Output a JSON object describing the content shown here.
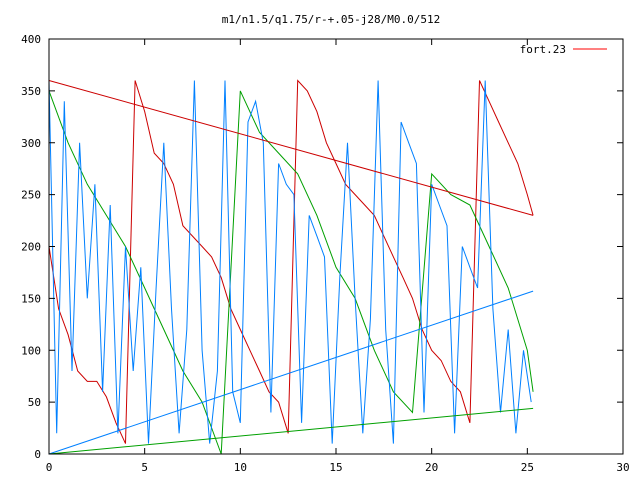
{
  "chart_data": {
    "type": "line",
    "title": "m1/n1.5/q1.75/r-+.05-j28/M0.0/512",
    "xlabel": "",
    "ylabel": "",
    "xlim": [
      0,
      30
    ],
    "ylim": [
      0,
      400
    ],
    "x_ticks": [
      0,
      5,
      10,
      15,
      20,
      25,
      30
    ],
    "y_ticks": [
      0,
      50,
      100,
      150,
      200,
      250,
      300,
      350,
      400
    ],
    "x_tick_labels": [
      "0",
      "5",
      "10",
      "15",
      "20",
      "25",
      "30"
    ],
    "y_tick_labels": [
      "0",
      "50",
      "100",
      "150",
      "200",
      "250",
      "300",
      "350",
      "400"
    ],
    "grid": false,
    "legend_position": "top-right",
    "legend": [
      {
        "name": "fort.23",
        "color": "#ff0000"
      }
    ],
    "series": [
      {
        "name": "fort.23",
        "color": "#cc0000",
        "x": [
          0,
          0.5,
          1,
          1.5,
          2,
          2.5,
          3,
          3.5,
          4,
          4.5,
          5,
          5.5,
          6,
          6.5,
          7,
          7.5,
          8,
          8.5,
          9,
          9.5,
          10,
          10.5,
          11,
          11.5,
          12,
          12.5,
          13,
          13.5,
          14,
          14.5,
          15,
          15.5,
          16,
          16.5,
          17,
          17.5,
          18,
          18.5,
          19,
          19.5,
          20,
          20.5,
          21,
          21.5,
          22,
          22.5,
          23,
          23.5,
          24,
          24.5,
          25,
          25.3
        ],
        "values": [
          200,
          140,
          115,
          80,
          70,
          70,
          55,
          30,
          10,
          360,
          330,
          290,
          280,
          260,
          220,
          210,
          200,
          190,
          170,
          140,
          120,
          100,
          80,
          60,
          50,
          20,
          360,
          350,
          330,
          300,
          280,
          260,
          250,
          240,
          230,
          210,
          190,
          170,
          150,
          120,
          100,
          90,
          70,
          60,
          30,
          360,
          340,
          320,
          300,
          280,
          250,
          230
        ]
      },
      {
        "name": "",
        "color": "#00a000",
        "x": [
          0,
          1,
          2,
          3,
          4,
          5,
          6,
          7,
          8,
          9,
          10,
          11,
          12,
          13,
          14,
          15,
          16,
          17,
          18,
          19,
          20,
          21,
          22,
          23,
          24,
          25,
          25.3
        ],
        "values": [
          350,
          300,
          260,
          230,
          200,
          160,
          120,
          80,
          50,
          0,
          350,
          310,
          290,
          270,
          230,
          180,
          150,
          100,
          60,
          40,
          270,
          250,
          240,
          200,
          160,
          100,
          60
        ]
      },
      {
        "name": "",
        "color": "#0080ff",
        "x": [
          0,
          0.4,
          0.8,
          1.2,
          1.6,
          2,
          2.4,
          2.8,
          3.2,
          3.6,
          4,
          4.4,
          4.8,
          5.2,
          5.6,
          6,
          6.4,
          6.8,
          7.2,
          7.6,
          8,
          8.4,
          8.8,
          9.2,
          9.6,
          10,
          10.4,
          10.8,
          11.2,
          11.6,
          12,
          12.4,
          12.8,
          13.2,
          13.6,
          14,
          14.4,
          14.8,
          15.2,
          15.6,
          16,
          16.4,
          16.8,
          17.2,
          17.6,
          18,
          18.4,
          18.8,
          19.2,
          19.6,
          20,
          20.4,
          20.8,
          21.2,
          21.6,
          22,
          22.4,
          22.8,
          23.2,
          23.6,
          24,
          24.4,
          24.8,
          25.2
        ],
        "values": [
          360,
          20,
          340,
          80,
          300,
          150,
          260,
          60,
          240,
          20,
          200,
          80,
          180,
          10,
          160,
          300,
          140,
          20,
          120,
          360,
          100,
          10,
          80,
          360,
          60,
          30,
          320,
          340,
          300,
          40,
          280,
          260,
          250,
          30,
          230,
          210,
          190,
          10,
          170,
          300,
          150,
          20,
          130,
          360,
          120,
          10,
          320,
          300,
          280,
          40,
          260,
          240,
          220,
          20,
          200,
          180,
          160,
          360,
          140,
          40,
          120,
          20,
          100,
          50
        ]
      },
      {
        "name": "",
        "color": "#cc0000",
        "x": [
          0,
          25.3
        ],
        "values": [
          360,
          230
        ]
      },
      {
        "name": "",
        "color": "#0080ff",
        "x": [
          0,
          25.3
        ],
        "values": [
          0,
          157
        ]
      },
      {
        "name": "",
        "color": "#00a000",
        "x": [
          0,
          25.3
        ],
        "values": [
          0,
          44
        ]
      }
    ]
  }
}
